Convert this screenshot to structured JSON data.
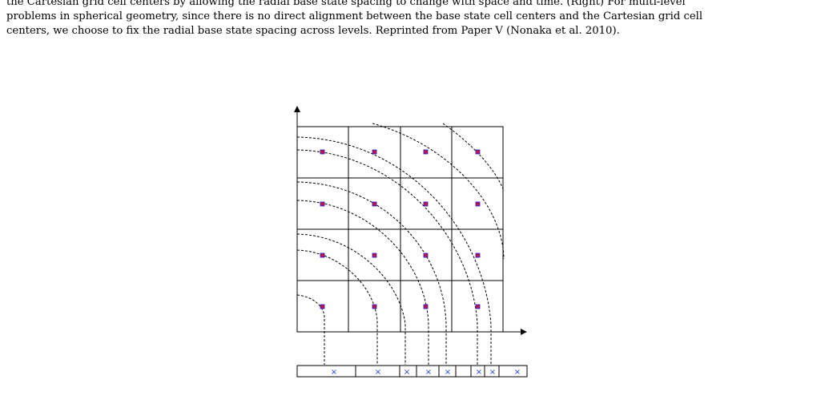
{
  "caption": {
    "lines": [
      "the Cartesian grid cell centers by allowing the radial base state spacing to change with space and time. (Right) For multi-level",
      "problems in spherical geometry, since there is no direct alignment between the base state cell centers and the Cartesian grid cell",
      "centers, we choose to fix the radial base state spacing across levels. Reprinted from Paper V (Nonaka et al. 2010)."
    ]
  },
  "figure": {
    "grid": {
      "columns": 4,
      "rows": 4
    },
    "colors": {
      "grid": "#000000",
      "arcs": "#000000",
      "cell_center_marker": "#c0144c",
      "cell_center_outline": "#2020d0",
      "base_state_marker": "#1f3fd0"
    },
    "base_state_marker_symbol": "×",
    "cell_centers_per_row": 4,
    "base_state_marker_count": 9
  }
}
